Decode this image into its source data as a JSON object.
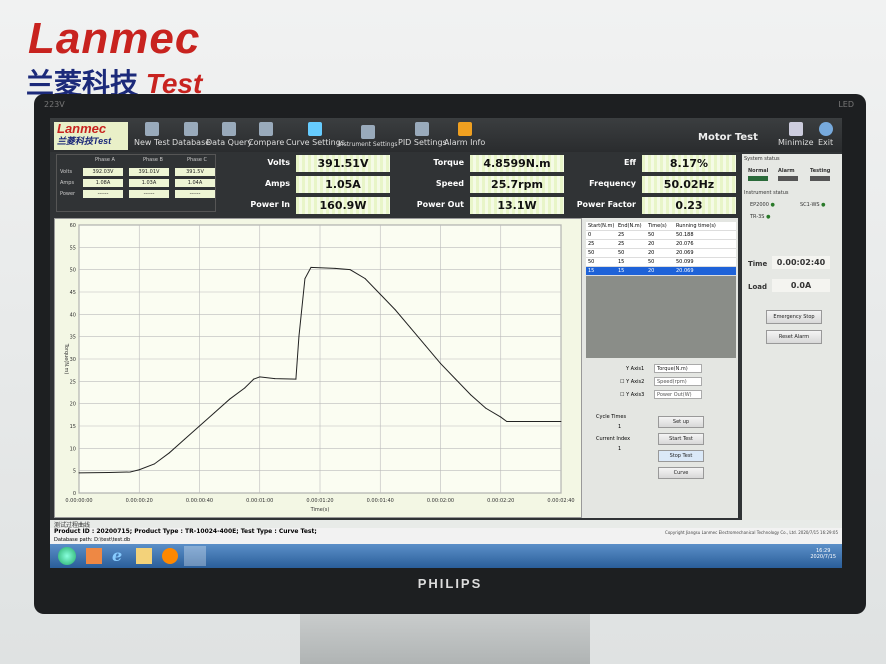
{
  "wall": {
    "brand": "Lanmec",
    "brand_cn": "兰菱科技",
    "brand_test": "Test"
  },
  "monitor": {
    "model": "223V",
    "led": "LED",
    "maker": "PHILIPS"
  },
  "toolbar": {
    "logo": "Lanmec",
    "logo_sub": "兰菱科技Test",
    "items": [
      {
        "label": "New Test",
        "icon": "new-test-icon"
      },
      {
        "label": "Database",
        "icon": "database-icon"
      },
      {
        "label": "Data Query",
        "icon": "data-query-icon"
      },
      {
        "label": "Compare",
        "icon": "compare-icon"
      },
      {
        "label": "Curve Settings",
        "icon": "wrench-icon"
      },
      {
        "label": "Instrument Settings",
        "icon": "instrument-icon"
      },
      {
        "label": "PID Settings",
        "icon": "pid-icon"
      },
      {
        "label": "Alarm Info",
        "icon": "warning-icon"
      }
    ],
    "title": "Motor Test",
    "minimize": "Minimize",
    "exit": "Exit"
  },
  "phase": {
    "headers": [
      "Phase A",
      "Phase B",
      "Phase C"
    ],
    "rows": [
      {
        "label": "Volts",
        "values": [
          "392.03V",
          "391.01V",
          "391.5V"
        ]
      },
      {
        "label": "Amps",
        "values": [
          "1.08A",
          "1.03A",
          "1.04A"
        ]
      },
      {
        "label": "Power",
        "values": [
          "------",
          "------",
          "------"
        ]
      }
    ]
  },
  "readings": [
    {
      "label": "Volts",
      "value": "391.51V"
    },
    {
      "label": "Amps",
      "value": "1.05A"
    },
    {
      "label": "Power In",
      "value": "160.9W"
    },
    {
      "label": "Torque",
      "value": "4.8599N.m"
    },
    {
      "label": "Speed",
      "value": "25.7rpm"
    },
    {
      "label": "Power Out",
      "value": "13.1W"
    },
    {
      "label": "Eff",
      "value": "8.17%"
    },
    {
      "label": "Frequency",
      "value": "50.02Hz"
    },
    {
      "label": "Power Factor",
      "value": "0.23"
    }
  ],
  "system_status": {
    "title": "System status",
    "items": [
      "Normal",
      "Alarm",
      "Testing"
    ],
    "instrument_title": "Instrument status",
    "instruments": [
      "EP2000",
      "SC1-WS",
      "TR-3S"
    ]
  },
  "time": {
    "label": "Time",
    "value": "0.00:02:40"
  },
  "load": {
    "label": "Load",
    "value": "0.0A"
  },
  "emergency_stop": "Emergency Stop",
  "reset_alarm": "Reset Alarm",
  "steps": {
    "headers": [
      "Start(N.m)",
      "End(N.m)",
      "Time(s)",
      "Running time(s)"
    ],
    "rows": [
      [
        "0",
        "25",
        "50",
        "50.188"
      ],
      [
        "25",
        "25",
        "20",
        "20.076"
      ],
      [
        "50",
        "50",
        "20",
        "20.069"
      ],
      [
        "50",
        "15",
        "50",
        "50.099"
      ],
      [
        "15",
        "15",
        "20",
        "20.069"
      ]
    ],
    "selected": 4
  },
  "axes": {
    "y1_label": "Y Axis1",
    "y1": "Torque(N.m)",
    "y2_label": "Y Axis2",
    "y2": "Speed(rpm)",
    "y3_label": "Y Axis3",
    "y3": "Power Out(W)"
  },
  "cycle": {
    "label": "Cycle Times",
    "value": "1"
  },
  "index": {
    "label": "Current Index",
    "value": "1"
  },
  "buttons": {
    "setup": "Set up",
    "start": "Start Test",
    "stop": "Stop Test",
    "curve": "Curve"
  },
  "chart_caption": "测试过程曲线",
  "status_bar": {
    "product": "Product ID : 20200715; Product Type : TR-10024-400E;  Test Type : Curve Test;",
    "db_path": "Database path: D:\\test\\test.db",
    "copyright": "Copyright Jiangsu Lanmec Electromechanical Technology Co., Ltd. 2020/7/15 16:29:05"
  },
  "clock": {
    "time": "16:29",
    "date": "2020/7/15"
  },
  "chart_data": {
    "type": "line",
    "xlabel": "Time(s)",
    "ylabel": "Torque(N.m)",
    "ylim": [
      0,
      60
    ],
    "yticks": [
      0,
      5,
      10,
      15,
      20,
      25,
      30,
      35,
      40,
      45,
      50,
      55,
      60
    ],
    "xlim": [
      0,
      160
    ],
    "xticks": [
      "0.00:00:00",
      "0.00:00:20",
      "0.00:00:40",
      "0.00:01:00",
      "0.00:01:20",
      "0.00:01:40",
      "0.00:02:00",
      "0.00:02:20",
      "0.00:02:40"
    ],
    "grid": true,
    "x": [
      0,
      10,
      17,
      20,
      25,
      30,
      35,
      40,
      45,
      50,
      55,
      58,
      60,
      65,
      72,
      73,
      75,
      77,
      85,
      90,
      95,
      100,
      105,
      110,
      115,
      120,
      125,
      130,
      135,
      140,
      142,
      150,
      160
    ],
    "y": [
      4.5,
      4.6,
      4.7,
      5.2,
      6.5,
      9,
      12,
      15,
      18,
      21,
      23.5,
      25.5,
      26,
      25.6,
      25.5,
      35,
      48,
      50.5,
      50.3,
      50,
      48,
      44.5,
      41,
      37,
      33,
      29,
      25.5,
      22,
      19,
      17,
      16,
      16,
      16
    ]
  }
}
